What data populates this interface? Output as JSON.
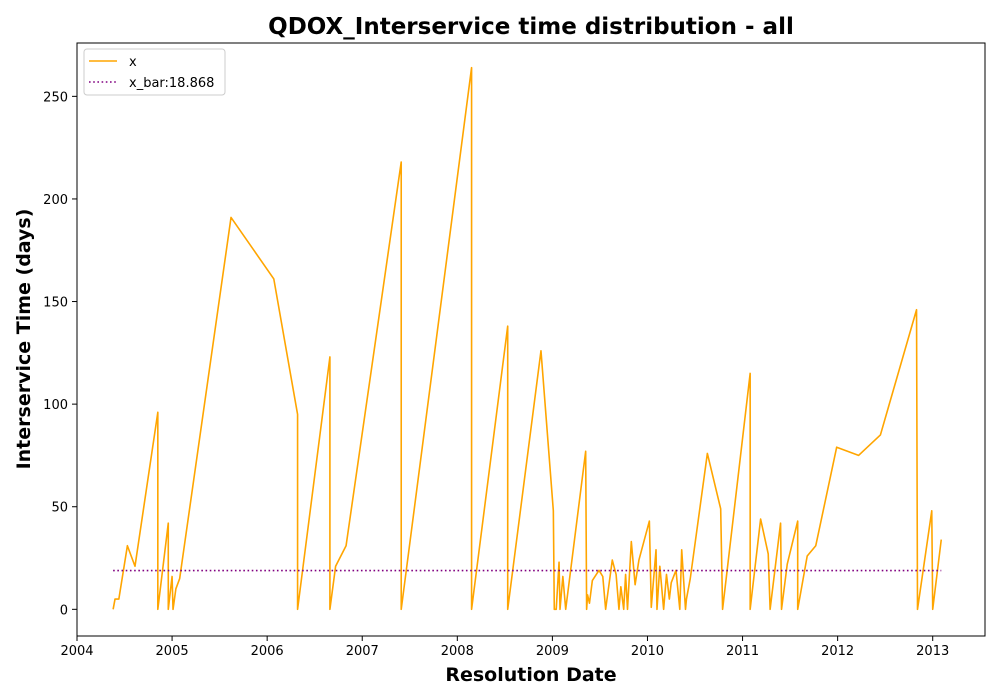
{
  "chart_data": {
    "type": "line",
    "title": "QDOX_Interservice time distribution - all",
    "xlabel": "Resolution Date",
    "ylabel": "Interservice Time (days)",
    "xlim": [
      2004.0,
      2013.55
    ],
    "ylim": [
      -13,
      276
    ],
    "x_ticks": [
      2004,
      2005,
      2006,
      2007,
      2008,
      2009,
      2010,
      2011,
      2012,
      2013
    ],
    "x_tick_labels": [
      "2004",
      "2005",
      "2006",
      "2007",
      "2008",
      "2009",
      "2010",
      "2011",
      "2012",
      "2013"
    ],
    "y_ticks": [
      0,
      50,
      100,
      150,
      200,
      250
    ],
    "y_tick_labels": [
      "0",
      "50",
      "100",
      "150",
      "200",
      "250"
    ],
    "grid": false,
    "legend_position": "upper-left",
    "series": [
      {
        "name": "x",
        "color": "#FFA500",
        "style": "solid",
        "x": [
          2004.38,
          2004.4,
          2004.44,
          2004.53,
          2004.61,
          2004.85,
          2004.85,
          2004.96,
          2004.96,
          2005.0,
          2005.01,
          2005.04,
          2005.08,
          2005.62,
          2006.07,
          2006.32,
          2006.32,
          2006.66,
          2006.66,
          2006.72,
          2006.83,
          2007.41,
          2007.41,
          2008.15,
          2008.15,
          2008.53,
          2008.53,
          2008.88,
          2009.01,
          2009.02,
          2009.04,
          2009.07,
          2009.08,
          2009.11,
          2009.14,
          2009.35,
          2009.36,
          2009.37,
          2009.39,
          2009.42,
          2009.49,
          2009.53,
          2009.56,
          2009.63,
          2009.67,
          2009.7,
          2009.72,
          2009.75,
          2009.77,
          2009.79,
          2009.83,
          2009.87,
          2009.91,
          2010.02,
          2010.04,
          2010.09,
          2010.1,
          2010.13,
          2010.17,
          2010.2,
          2010.23,
          2010.25,
          2010.3,
          2010.34,
          2010.36,
          2010.4,
          2010.41,
          2010.45,
          2010.63,
          2010.77,
          2010.79,
          2011.08,
          2011.08,
          2011.19,
          2011.27,
          2011.29,
          2011.4,
          2011.41,
          2011.47,
          2011.58,
          2011.58,
          2011.68,
          2011.77,
          2011.99,
          2012.22,
          2012.45,
          2012.83,
          2012.84,
          2012.99,
          2013.0,
          2013.09
        ],
        "values": [
          0,
          5,
          5,
          31,
          21,
          96,
          0,
          42,
          0,
          16,
          0,
          10,
          15,
          191,
          161,
          95,
          0,
          123,
          0,
          21,
          31,
          218,
          0,
          264,
          0,
          138,
          0,
          126,
          48,
          0,
          0,
          23,
          0,
          16,
          0,
          77,
          0,
          7,
          3,
          14,
          19,
          16,
          0,
          24,
          17,
          0,
          11,
          0,
          17,
          0,
          33,
          12,
          24,
          43,
          1,
          29,
          0,
          21,
          0,
          17,
          5,
          13,
          19,
          0,
          29,
          0,
          5,
          15,
          76,
          49,
          0,
          115,
          0,
          44,
          27,
          0,
          42,
          0,
          22,
          43,
          0,
          26,
          31,
          79,
          75,
          85,
          146,
          0,
          48,
          0,
          34
        ]
      },
      {
        "name": "x_bar:18.868",
        "color": "#800080",
        "style": "dotted",
        "x": [
          2004.38,
          2013.09
        ],
        "values": [
          18.868,
          18.868
        ]
      }
    ]
  }
}
